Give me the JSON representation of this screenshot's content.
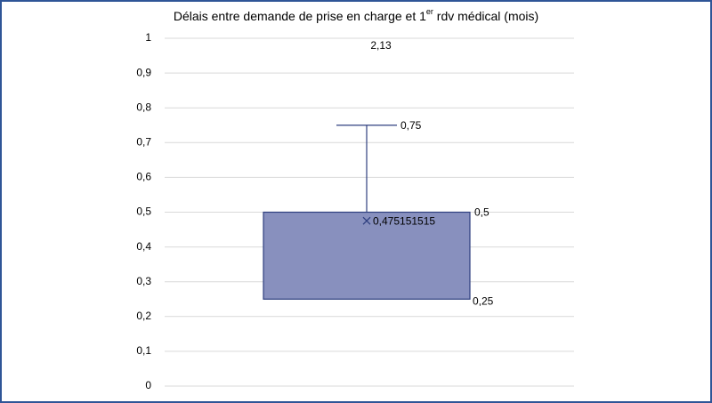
{
  "chart_data": {
    "type": "box",
    "title": [
      "Délais entre demande de prise en charge et 1",
      "er",
      " rdv médical (mois)"
    ],
    "ylim": [
      0,
      1
    ],
    "yticks": [
      0,
      {
        "value": 0.1,
        "label": "0,1"
      },
      {
        "value": 0.2,
        "label": "0,2"
      },
      {
        "value": 0.3,
        "label": "0,3"
      },
      {
        "value": 0.4,
        "label": "0,4"
      },
      {
        "value": 0.5,
        "label": "0,5"
      },
      {
        "value": 0.6,
        "label": "0,6"
      },
      {
        "value": 0.7,
        "label": "0,7"
      },
      {
        "value": 0.8,
        "label": "0,8"
      },
      {
        "value": 0.9,
        "label": "0,9"
      },
      1
    ],
    "grid": true,
    "color": "#8890be",
    "q1": 0.25,
    "q3": 0.5,
    "max": 0.75,
    "mean": 0.475151515,
    "outliers": [
      2.13
    ],
    "value_labels": {
      "q1": "0,25",
      "q3": "0,5",
      "max": "0,75",
      "mean": "0,475151515",
      "outliers": [
        "2,13"
      ]
    }
  }
}
